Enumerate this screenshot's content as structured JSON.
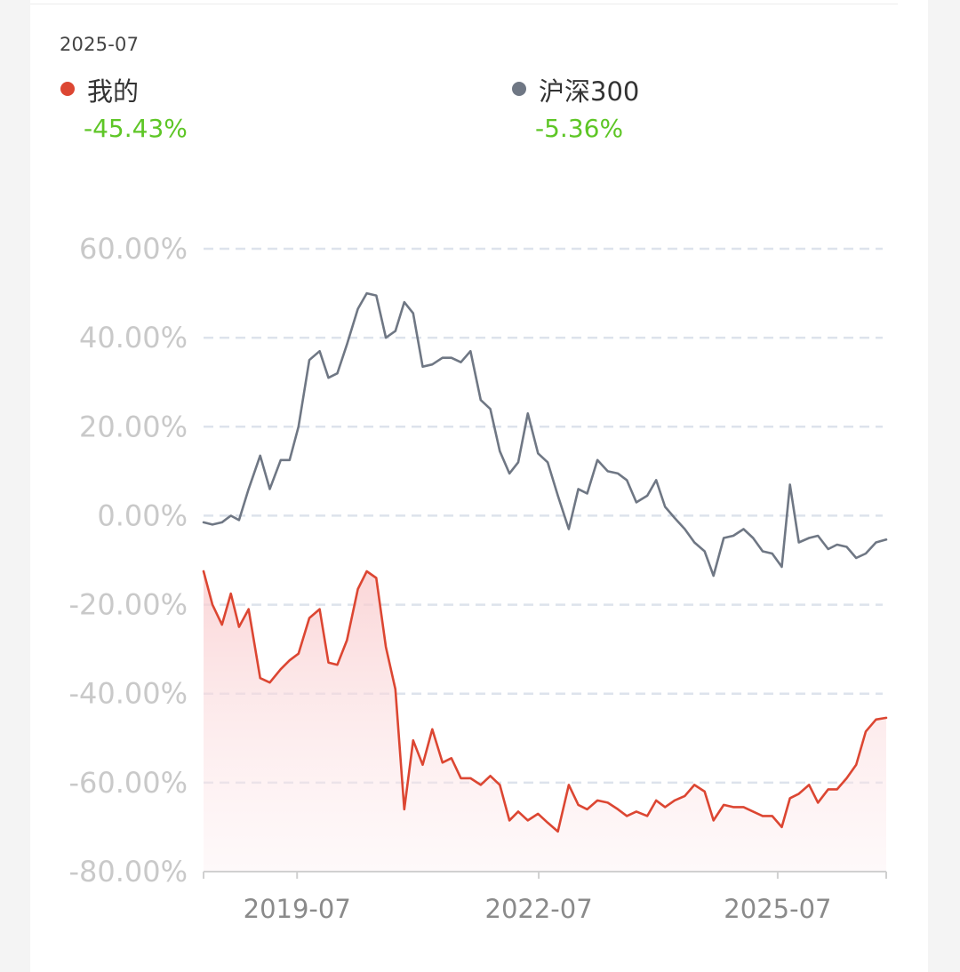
{
  "header": {
    "date": "2025-07"
  },
  "legend": [
    {
      "name": "我的",
      "value": "-45.43%",
      "color": "#dc4632"
    },
    {
      "name": "沪深300",
      "value": "-5.36%",
      "color": "#6f7784"
    }
  ],
  "colors": {
    "mine": "#dc4632",
    "bench": "#6f7784",
    "positive_green": "#5ec626",
    "grid": "#dde3ec"
  },
  "chart_data": {
    "type": "line",
    "title": "",
    "xlabel": "",
    "ylabel": "",
    "ylim": [
      -80,
      60
    ],
    "yticks": [
      60,
      40,
      20,
      0,
      -20,
      -40,
      -60,
      -80
    ],
    "ytick_labels": [
      "60.00%",
      "40.00%",
      "20.00%",
      "0.00%",
      "-20.00%",
      "-40.00%",
      "-60.00%",
      "-80.00%"
    ],
    "xlim": [
      0,
      1
    ],
    "xticks": [
      {
        "x": 0.137,
        "label": "2019-07"
      },
      {
        "x": 0.491,
        "label": "2022-07"
      },
      {
        "x": 0.841,
        "label": "2025-07"
      }
    ],
    "grid": true,
    "legend_position": "top",
    "series": [
      {
        "name": "沪深300",
        "key": "bench",
        "area": false,
        "values": [
          [
            0.0,
            -1.5
          ],
          [
            0.013,
            -2.0
          ],
          [
            0.027,
            -1.5
          ],
          [
            0.04,
            0.0
          ],
          [
            0.052,
            -1.0
          ],
          [
            0.066,
            6.0
          ],
          [
            0.083,
            13.5
          ],
          [
            0.097,
            6.0
          ],
          [
            0.113,
            12.5
          ],
          [
            0.126,
            12.5
          ],
          [
            0.139,
            20.0
          ],
          [
            0.155,
            35.0
          ],
          [
            0.17,
            37.0
          ],
          [
            0.183,
            31.0
          ],
          [
            0.196,
            32.0
          ],
          [
            0.21,
            38.5
          ],
          [
            0.226,
            46.5
          ],
          [
            0.239,
            50.0
          ],
          [
            0.253,
            49.5
          ],
          [
            0.267,
            40.0
          ],
          [
            0.281,
            41.5
          ],
          [
            0.294,
            48.0
          ],
          [
            0.307,
            45.5
          ],
          [
            0.321,
            33.5
          ],
          [
            0.335,
            34.0
          ],
          [
            0.35,
            35.5
          ],
          [
            0.363,
            35.5
          ],
          [
            0.377,
            34.5
          ],
          [
            0.391,
            37.0
          ],
          [
            0.406,
            26.0
          ],
          [
            0.42,
            24.0
          ],
          [
            0.434,
            14.5
          ],
          [
            0.448,
            9.5
          ],
          [
            0.461,
            12.0
          ],
          [
            0.475,
            23.0
          ],
          [
            0.49,
            14.0
          ],
          [
            0.504,
            12.0
          ],
          [
            0.519,
            4.5
          ],
          [
            0.535,
            -3.0
          ],
          [
            0.549,
            6.0
          ],
          [
            0.562,
            5.0
          ],
          [
            0.577,
            12.5
          ],
          [
            0.592,
            10.0
          ],
          [
            0.607,
            9.5
          ],
          [
            0.62,
            8.0
          ],
          [
            0.634,
            3.0
          ],
          [
            0.65,
            4.5
          ],
          [
            0.663,
            8.0
          ],
          [
            0.676,
            2.0
          ],
          [
            0.69,
            -0.5
          ],
          [
            0.705,
            -3.0
          ],
          [
            0.719,
            -6.0
          ],
          [
            0.734,
            -8.0
          ],
          [
            0.747,
            -13.5
          ],
          [
            0.762,
            -5.0
          ],
          [
            0.776,
            -4.5
          ],
          [
            0.791,
            -3.0
          ],
          [
            0.805,
            -5.0
          ],
          [
            0.819,
            -8.0
          ],
          [
            0.833,
            -8.5
          ],
          [
            0.847,
            -11.5
          ],
          [
            0.859,
            7.0
          ],
          [
            0.872,
            -6.0
          ],
          [
            0.887,
            -5.0
          ],
          [
            0.9,
            -4.5
          ],
          [
            0.915,
            -7.5
          ],
          [
            0.928,
            -6.5
          ],
          [
            0.942,
            -7.0
          ],
          [
            0.956,
            -9.5
          ],
          [
            0.97,
            -8.5
          ],
          [
            0.985,
            -6.0
          ],
          [
            1.0,
            -5.36
          ]
        ]
      },
      {
        "name": "我的",
        "key": "mine",
        "area": true,
        "values": [
          [
            0.0,
            -12.5
          ],
          [
            0.013,
            -20.0
          ],
          [
            0.027,
            -24.5
          ],
          [
            0.04,
            -17.5
          ],
          [
            0.052,
            -25.0
          ],
          [
            0.066,
            -21.0
          ],
          [
            0.083,
            -36.5
          ],
          [
            0.097,
            -37.5
          ],
          [
            0.113,
            -34.5
          ],
          [
            0.126,
            -32.5
          ],
          [
            0.139,
            -31.0
          ],
          [
            0.155,
            -23.0
          ],
          [
            0.17,
            -21.0
          ],
          [
            0.183,
            -33.0
          ],
          [
            0.196,
            -33.5
          ],
          [
            0.21,
            -28.0
          ],
          [
            0.226,
            -16.5
          ],
          [
            0.239,
            -12.5
          ],
          [
            0.253,
            -14.0
          ],
          [
            0.267,
            -29.5
          ],
          [
            0.281,
            -39.0
          ],
          [
            0.294,
            -66.0
          ],
          [
            0.307,
            -50.5
          ],
          [
            0.321,
            -56.0
          ],
          [
            0.335,
            -48.0
          ],
          [
            0.35,
            -55.5
          ],
          [
            0.363,
            -54.5
          ],
          [
            0.377,
            -59.0
          ],
          [
            0.391,
            -59.0
          ],
          [
            0.406,
            -60.5
          ],
          [
            0.42,
            -58.5
          ],
          [
            0.434,
            -60.5
          ],
          [
            0.448,
            -68.5
          ],
          [
            0.461,
            -66.5
          ],
          [
            0.475,
            -68.5
          ],
          [
            0.49,
            -67.0
          ],
          [
            0.504,
            -69.0
          ],
          [
            0.519,
            -71.0
          ],
          [
            0.535,
            -60.5
          ],
          [
            0.549,
            -65.0
          ],
          [
            0.562,
            -66.0
          ],
          [
            0.577,
            -64.0
          ],
          [
            0.592,
            -64.5
          ],
          [
            0.607,
            -66.0
          ],
          [
            0.62,
            -67.5
          ],
          [
            0.634,
            -66.5
          ],
          [
            0.65,
            -67.5
          ],
          [
            0.663,
            -64.0
          ],
          [
            0.676,
            -65.5
          ],
          [
            0.69,
            -64.0
          ],
          [
            0.705,
            -63.0
          ],
          [
            0.719,
            -60.5
          ],
          [
            0.734,
            -62.0
          ],
          [
            0.747,
            -68.5
          ],
          [
            0.762,
            -65.0
          ],
          [
            0.776,
            -65.5
          ],
          [
            0.791,
            -65.5
          ],
          [
            0.805,
            -66.5
          ],
          [
            0.819,
            -67.5
          ],
          [
            0.833,
            -67.5
          ],
          [
            0.847,
            -70.0
          ],
          [
            0.859,
            -63.5
          ],
          [
            0.872,
            -62.5
          ],
          [
            0.887,
            -60.5
          ],
          [
            0.9,
            -64.5
          ],
          [
            0.915,
            -61.5
          ],
          [
            0.928,
            -61.5
          ],
          [
            0.942,
            -59.0
          ],
          [
            0.956,
            -56.0
          ],
          [
            0.97,
            -48.5
          ],
          [
            0.985,
            -45.8
          ],
          [
            1.0,
            -45.43
          ]
        ]
      }
    ]
  }
}
